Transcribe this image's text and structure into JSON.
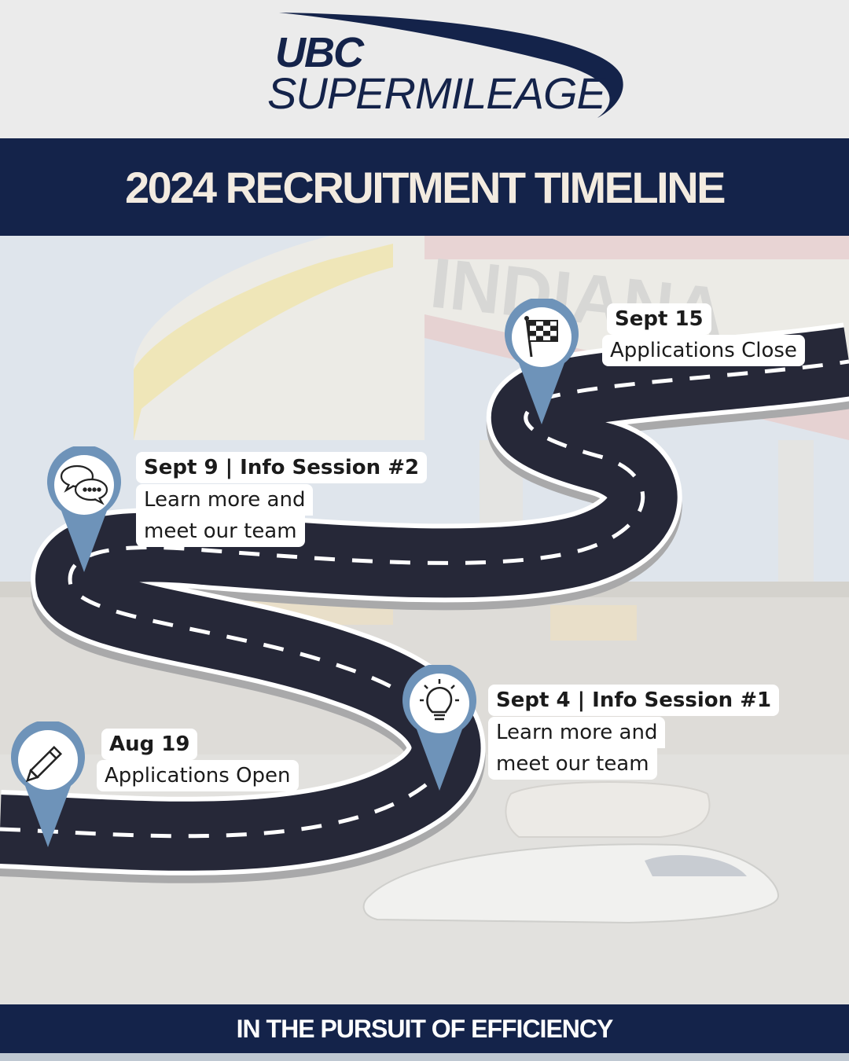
{
  "header": {
    "logo_line1": "UBC",
    "logo_line2": "SUPERMILEAGE"
  },
  "title": "2024 RECRUITMENT TIMELINE",
  "footer": "IN THE PURSUIT OF EFFICIENCY",
  "milestones": [
    {
      "date": "Aug 19",
      "line1": "Applications Open",
      "icon": "pencil-icon"
    },
    {
      "date": "Sept 4 | Info  Session  #1",
      "line1": "Learn more and",
      "line2": "meet our team",
      "icon": "lightbulb-icon"
    },
    {
      "date": "Sept 9 | Info  Session  #2",
      "line1": "Learn more and",
      "line2": "meet our team",
      "icon": "chat-bubbles-icon"
    },
    {
      "date": "Sept 15",
      "line1": "Applications Close",
      "icon": "checkered-flag-icon"
    }
  ],
  "colors": {
    "navy": "#14234a",
    "pin": "#6e93b9",
    "road": "#262838",
    "title_text": "#f3ebe0"
  }
}
